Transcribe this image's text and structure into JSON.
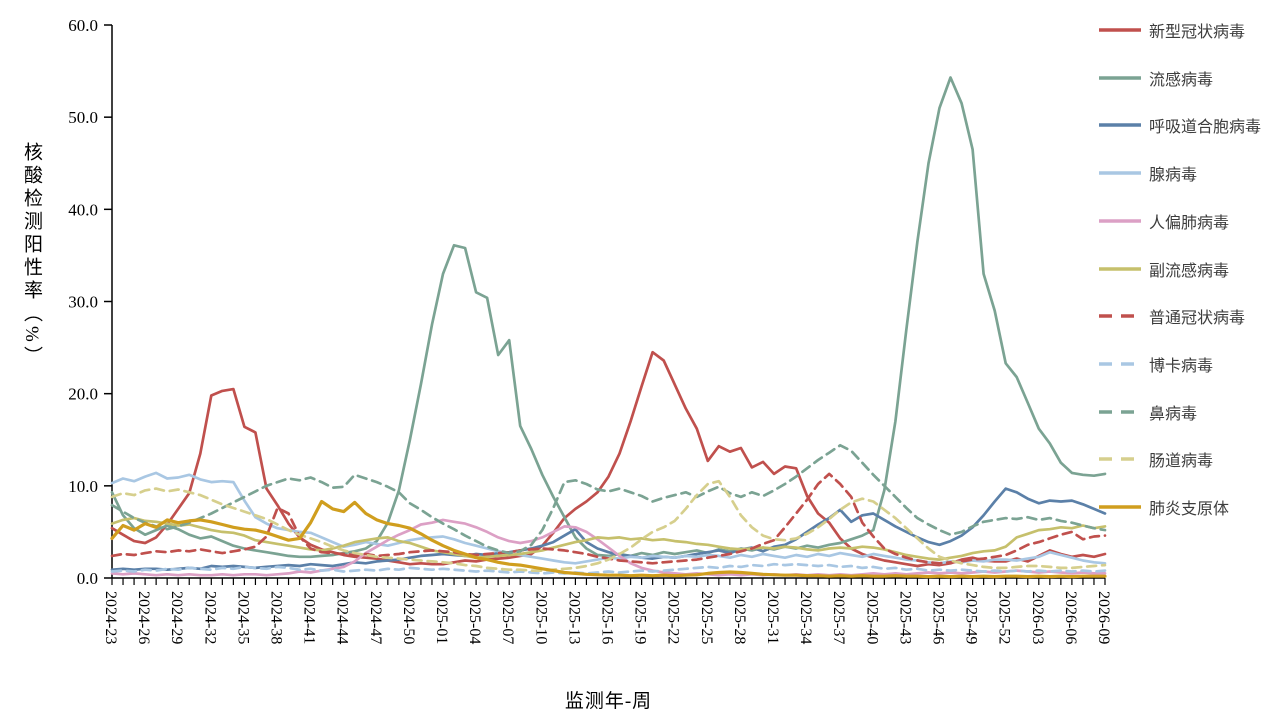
{
  "chart_data": {
    "type": "line",
    "title": "",
    "xlabel": "监测年-周",
    "ylabel": "核酸检测阳性率（%）",
    "ylim": [
      0,
      60
    ],
    "y_tick_step": 10,
    "y_tick_labels": [
      "0.0",
      "10.0",
      "20.0",
      "30.0",
      "40.0",
      "50.0",
      "60.0"
    ],
    "grid": false,
    "legend_position": "right",
    "n_points": 91,
    "x_tick_every": 3,
    "x_tick_labels": [
      "2024-23",
      "2024-26",
      "2024-29",
      "2024-32",
      "2024-35",
      "2024-38",
      "2024-41",
      "2024-44",
      "2024-47",
      "2024-50",
      "2025-01",
      "2025-04",
      "2025-07",
      "2025-10",
      "2025-13",
      "2025-16",
      "2025-19",
      "2025-22",
      "2025-25",
      "2025-28",
      "2025-31",
      "2025-34",
      "2025-37",
      "2025-40",
      "2025-43",
      "2025-46",
      "2025-49",
      "2025-52",
      "2026-03",
      "2026-06",
      "2026-09"
    ],
    "series": [
      {
        "key": "covid",
        "name": "新型冠状病毒",
        "color": "#C0504D",
        "dashed": false,
        "width": 2.7,
        "values": [
          5.4,
          4.7,
          4.0,
          3.8,
          4.4,
          5.8,
          7.5,
          9.2,
          13.5,
          19.8,
          20.3,
          20.5,
          16.4,
          15.8,
          9.7,
          7.9,
          5.9,
          4.4,
          3.6,
          3.1,
          2.8,
          2.5,
          2.3,
          2.2,
          2.1,
          1.9,
          1.7,
          1.5,
          1.6,
          1.5,
          1.5,
          1.7,
          1.9,
          1.8,
          2.0,
          2.1,
          2.2,
          2.4,
          2.6,
          3.5,
          4.9,
          6.5,
          7.5,
          8.3,
          9.3,
          11.0,
          13.5,
          17.0,
          20.8,
          24.5,
          23.6,
          21.0,
          18.4,
          16.2,
          12.7,
          14.3,
          13.7,
          14.1,
          12.0,
          12.6,
          11.3,
          12.1,
          11.9,
          8.9,
          7.0,
          6.0,
          4.3,
          3.2,
          2.6,
          2.2,
          1.9,
          1.7,
          1.5,
          1.3,
          1.5,
          1.4,
          1.6,
          2.0,
          2.2,
          1.9,
          1.8,
          1.8,
          2.1,
          1.8,
          2.4,
          3.0,
          2.6,
          2.3,
          2.5,
          2.3,
          2.6
        ]
      },
      {
        "key": "flu",
        "name": "流感病毒",
        "color": "#7BA393",
        "dashed": false,
        "width": 2.7,
        "values": [
          9.3,
          6.8,
          5.4,
          4.7,
          5.2,
          5.7,
          5.3,
          4.7,
          4.3,
          4.5,
          4.0,
          3.5,
          3.2,
          3.0,
          2.8,
          2.6,
          2.4,
          2.3,
          2.3,
          2.4,
          2.5,
          2.7,
          2.9,
          3.2,
          4.0,
          6.0,
          9.5,
          15.0,
          21.0,
          27.5,
          33.0,
          36.1,
          35.8,
          31.0,
          30.4,
          24.2,
          25.8,
          16.5,
          14.0,
          11.2,
          8.8,
          6.6,
          4.4,
          3.2,
          2.5,
          2.4,
          2.6,
          2.4,
          2.7,
          2.5,
          2.8,
          2.6,
          2.8,
          3.0,
          2.7,
          3.1,
          2.9,
          3.2,
          3.0,
          3.3,
          3.1,
          3.4,
          3.2,
          3.5,
          3.3,
          3.6,
          3.8,
          4.2,
          4.6,
          5.2,
          9.5,
          17.0,
          27.0,
          36.5,
          45.0,
          51.0,
          54.3,
          51.5,
          46.5,
          33.0,
          29.0,
          23.3,
          21.8,
          19.0,
          16.2,
          14.6,
          12.5,
          11.4,
          11.2,
          11.1,
          11.3
        ]
      },
      {
        "key": "rsv",
        "name": "呼吸道合胞病毒",
        "color": "#5B80A8",
        "dashed": false,
        "width": 2.7,
        "values": [
          0.9,
          1.0,
          0.9,
          1.0,
          1.0,
          0.9,
          1.0,
          1.1,
          1.0,
          1.3,
          1.2,
          1.3,
          1.2,
          1.1,
          1.2,
          1.3,
          1.4,
          1.3,
          1.5,
          1.4,
          1.3,
          1.5,
          1.7,
          1.6,
          1.8,
          1.9,
          2.0,
          2.2,
          2.4,
          2.5,
          2.6,
          2.5,
          2.4,
          2.6,
          2.5,
          2.7,
          2.8,
          3.0,
          3.2,
          3.5,
          3.9,
          4.6,
          5.3,
          3.9,
          3.2,
          2.8,
          2.5,
          2.4,
          2.2,
          2.1,
          2.3,
          2.2,
          2.4,
          2.6,
          2.8,
          3.0,
          2.7,
          3.1,
          3.3,
          2.9,
          3.4,
          3.6,
          4.2,
          5.0,
          5.8,
          6.5,
          7.4,
          6.1,
          6.8,
          7.0,
          6.3,
          5.6,
          5.0,
          4.4,
          3.9,
          3.6,
          4.0,
          4.6,
          5.5,
          6.8,
          8.3,
          9.7,
          9.3,
          8.6,
          8.1,
          8.4,
          8.3,
          8.4,
          8.0,
          7.5,
          7.0
        ]
      },
      {
        "key": "adv",
        "name": "腺病毒",
        "color": "#A9C7E3",
        "dashed": false,
        "width": 2.7,
        "values": [
          10.3,
          10.8,
          10.5,
          11.0,
          11.4,
          10.8,
          10.9,
          11.2,
          10.7,
          10.4,
          10.5,
          10.4,
          8.4,
          6.6,
          5.9,
          5.4,
          5.2,
          5.0,
          4.9,
          4.4,
          3.9,
          3.4,
          3.6,
          3.9,
          3.7,
          3.5,
          3.8,
          4.1,
          4.3,
          4.4,
          4.5,
          4.2,
          3.8,
          3.5,
          3.2,
          2.9,
          2.7,
          2.5,
          2.3,
          2.1,
          1.9,
          1.7,
          1.6,
          1.8,
          2.0,
          2.2,
          2.1,
          2.3,
          2.2,
          2.4,
          2.3,
          2.2,
          2.4,
          2.3,
          2.5,
          2.4,
          2.2,
          2.5,
          2.3,
          2.6,
          2.4,
          2.2,
          2.5,
          2.3,
          2.6,
          2.4,
          2.7,
          2.5,
          2.3,
          2.6,
          2.4,
          2.2,
          2.0,
          1.9,
          1.7,
          1.6,
          1.8,
          1.7,
          1.9,
          1.8,
          2.0,
          2.0,
          1.9,
          2.1,
          2.3,
          2.8,
          2.5,
          2.2,
          1.9,
          1.7,
          1.6
        ]
      },
      {
        "key": "hmpv",
        "name": "人偏肺病毒",
        "color": "#DCA0C5",
        "dashed": false,
        "width": 2.7,
        "values": [
          0.5,
          0.4,
          0.5,
          0.4,
          0.3,
          0.4,
          0.3,
          0.4,
          0.3,
          0.3,
          0.4,
          0.3,
          0.4,
          0.4,
          0.3,
          0.4,
          0.5,
          0.7,
          0.6,
          0.8,
          1.0,
          1.2,
          1.8,
          2.7,
          3.4,
          4.1,
          4.7,
          5.2,
          5.8,
          6.0,
          6.3,
          6.1,
          5.9,
          5.5,
          5.0,
          4.4,
          4.0,
          3.8,
          4.0,
          4.4,
          5.0,
          5.6,
          5.5,
          5.0,
          4.2,
          3.3,
          2.4,
          1.6,
          1.1,
          0.8,
          0.6,
          0.5,
          0.4,
          0.5,
          0.4,
          0.3,
          0.4,
          0.3,
          0.4,
          0.3,
          0.4,
          0.3,
          0.4,
          0.3,
          0.4,
          0.3,
          0.4,
          0.3,
          0.4,
          0.5,
          0.4,
          0.5,
          0.4,
          0.5,
          0.6,
          0.5,
          0.6,
          0.5,
          0.6,
          0.7,
          0.6,
          0.7,
          0.8,
          0.7,
          0.6,
          0.7,
          0.6,
          0.5,
          0.6,
          0.5,
          0.5
        ]
      },
      {
        "key": "piv",
        "name": "副流感病毒",
        "color": "#C6C06C",
        "dashed": false,
        "width": 2.7,
        "values": [
          5.9,
          6.3,
          6.5,
          6.2,
          6.1,
          5.9,
          5.7,
          5.8,
          5.5,
          5.2,
          5.0,
          4.9,
          4.6,
          4.1,
          3.9,
          3.7,
          3.5,
          3.3,
          3.1,
          3.0,
          3.2,
          3.5,
          3.9,
          4.1,
          4.3,
          4.4,
          4.0,
          3.8,
          3.4,
          3.0,
          2.8,
          2.6,
          2.4,
          2.2,
          2.3,
          2.4,
          2.5,
          2.6,
          2.8,
          3.0,
          3.3,
          3.6,
          3.9,
          4.1,
          4.4,
          4.3,
          4.4,
          4.2,
          4.3,
          4.1,
          4.2,
          4.0,
          3.9,
          3.7,
          3.6,
          3.4,
          3.2,
          3.1,
          3.2,
          3.3,
          3.2,
          3.4,
          3.3,
          3.1,
          3.0,
          3.2,
          3.3,
          3.2,
          3.4,
          3.3,
          3.1,
          2.8,
          2.5,
          2.3,
          2.1,
          2.0,
          2.2,
          2.4,
          2.7,
          2.9,
          3.0,
          3.4,
          4.4,
          4.8,
          5.2,
          5.3,
          5.5,
          5.4,
          5.7,
          5.4,
          5.6
        ]
      },
      {
        "key": "hcov",
        "name": "普通冠状病毒",
        "color": "#C0504D",
        "dashed": true,
        "width": 2.7,
        "values": [
          2.4,
          2.6,
          2.5,
          2.7,
          2.9,
          2.8,
          3.0,
          2.9,
          3.1,
          2.9,
          2.7,
          2.9,
          3.1,
          3.4,
          4.5,
          7.6,
          7.0,
          4.5,
          3.2,
          2.8,
          2.7,
          2.6,
          2.5,
          2.6,
          2.4,
          2.5,
          2.6,
          2.8,
          2.9,
          3.0,
          2.9,
          2.8,
          2.6,
          2.5,
          2.6,
          2.7,
          2.8,
          3.0,
          3.1,
          3.2,
          3.1,
          3.0,
          2.8,
          2.6,
          2.3,
          2.1,
          1.9,
          1.8,
          1.7,
          1.6,
          1.7,
          1.8,
          1.9,
          2.0,
          2.2,
          2.4,
          2.6,
          2.9,
          3.2,
          3.7,
          4.1,
          5.5,
          7.0,
          8.5,
          10.2,
          11.3,
          10.2,
          8.8,
          6.0,
          4.5,
          3.2,
          2.6,
          2.2,
          1.9,
          1.7,
          1.6,
          1.7,
          1.8,
          2.0,
          2.1,
          2.3,
          2.5,
          3.0,
          3.6,
          3.9,
          4.3,
          4.7,
          5.0,
          4.2,
          4.5,
          4.6
        ]
      },
      {
        "key": "hbov",
        "name": "博卡病毒",
        "color": "#A9C7E3",
        "dashed": true,
        "width": 2.7,
        "values": [
          0.7,
          0.8,
          0.7,
          0.9,
          0.8,
          1.0,
          0.9,
          1.1,
          1.0,
          0.9,
          1.1,
          1.0,
          1.2,
          1.1,
          1.0,
          1.2,
          1.1,
          0.9,
          1.0,
          0.8,
          0.9,
          0.7,
          0.8,
          0.9,
          0.8,
          1.0,
          0.9,
          1.1,
          1.0,
          0.9,
          1.0,
          0.9,
          0.8,
          0.7,
          0.8,
          0.7,
          0.6,
          0.7,
          0.6,
          0.5,
          0.6,
          0.5,
          0.6,
          0.5,
          0.6,
          0.7,
          0.6,
          0.7,
          0.8,
          0.7,
          0.8,
          0.9,
          1.0,
          1.1,
          1.2,
          1.1,
          1.3,
          1.2,
          1.4,
          1.3,
          1.5,
          1.4,
          1.5,
          1.4,
          1.3,
          1.4,
          1.2,
          1.3,
          1.1,
          1.2,
          1.0,
          1.1,
          0.9,
          1.0,
          0.8,
          0.9,
          0.8,
          0.9,
          0.8,
          0.7,
          0.8,
          0.7,
          0.8,
          0.7,
          0.8,
          0.7,
          0.8,
          0.7,
          0.8,
          0.7,
          0.8
        ]
      },
      {
        "key": "hrv",
        "name": "鼻病毒",
        "color": "#7BA393",
        "dashed": true,
        "width": 2.7,
        "values": [
          7.9,
          7.2,
          6.5,
          6.0,
          5.6,
          5.3,
          5.6,
          6.0,
          6.5,
          7.0,
          7.6,
          8.2,
          8.8,
          9.4,
          10.0,
          10.4,
          10.8,
          10.6,
          10.9,
          10.4,
          9.8,
          9.9,
          11.2,
          10.8,
          10.4,
          9.9,
          9.3,
          8.1,
          7.4,
          6.6,
          5.9,
          5.3,
          4.6,
          4.0,
          3.4,
          3.0,
          2.7,
          2.9,
          3.6,
          5.2,
          7.6,
          10.4,
          10.6,
          10.2,
          9.6,
          9.4,
          9.7,
          9.3,
          8.9,
          8.3,
          8.7,
          9.0,
          9.3,
          8.8,
          9.4,
          9.9,
          9.2,
          8.8,
          9.3,
          8.9,
          9.5,
          10.2,
          11.0,
          11.9,
          12.8,
          13.6,
          14.4,
          13.8,
          12.5,
          11.2,
          10.0,
          8.8,
          7.6,
          6.5,
          5.8,
          5.2,
          4.7,
          5.0,
          5.6,
          6.1,
          6.3,
          6.5,
          6.4,
          6.6,
          6.3,
          6.5,
          6.2,
          6.0,
          5.7,
          5.4,
          5.2
        ]
      },
      {
        "key": "ev",
        "name": "肠道病毒",
        "color": "#D6CF8D",
        "dashed": true,
        "width": 2.7,
        "values": [
          8.8,
          9.2,
          9.0,
          9.5,
          9.7,
          9.4,
          9.6,
          9.3,
          9.0,
          8.5,
          8.0,
          7.6,
          7.2,
          6.8,
          6.4,
          5.8,
          5.2,
          4.7,
          4.3,
          3.9,
          3.4,
          3.0,
          2.7,
          2.5,
          2.3,
          2.2,
          2.1,
          2.0,
          1.9,
          1.8,
          1.7,
          1.6,
          1.4,
          1.3,
          1.1,
          1.0,
          0.9,
          0.9,
          0.8,
          0.8,
          0.9,
          1.0,
          1.1,
          1.3,
          1.6,
          2.0,
          2.6,
          3.3,
          4.2,
          5.0,
          5.5,
          6.2,
          7.5,
          9.0,
          10.2,
          10.5,
          8.8,
          6.8,
          5.5,
          4.6,
          4.2,
          4.1,
          4.3,
          4.8,
          5.5,
          6.4,
          7.4,
          8.2,
          8.6,
          8.3,
          7.4,
          6.5,
          5.4,
          4.3,
          3.2,
          2.3,
          1.9,
          1.6,
          1.4,
          1.2,
          1.1,
          1.1,
          1.2,
          1.3,
          1.3,
          1.2,
          1.1,
          1.1,
          1.2,
          1.3,
          1.4
        ]
      },
      {
        "key": "mp",
        "name": "肺炎支原体",
        "color": "#D09E1E",
        "dashed": false,
        "width": 3.2,
        "values": [
          4.3,
          5.7,
          5.2,
          5.9,
          5.5,
          6.3,
          6.0,
          6.2,
          6.3,
          6.1,
          5.8,
          5.5,
          5.3,
          5.2,
          4.9,
          4.5,
          4.1,
          4.3,
          6.0,
          8.3,
          7.5,
          7.2,
          8.2,
          7.0,
          6.3,
          5.9,
          5.7,
          5.4,
          4.8,
          4.1,
          3.5,
          3.0,
          2.6,
          2.2,
          2.0,
          1.7,
          1.5,
          1.4,
          1.2,
          1.0,
          0.8,
          0.6,
          0.5,
          0.4,
          0.35,
          0.3,
          0.3,
          0.25,
          0.3,
          0.25,
          0.3,
          0.25,
          0.3,
          0.35,
          0.5,
          0.6,
          0.65,
          0.6,
          0.5,
          0.4,
          0.35,
          0.3,
          0.3,
          0.25,
          0.25,
          0.2,
          0.25,
          0.2,
          0.25,
          0.2,
          0.2,
          0.25,
          0.2,
          0.2,
          0.15,
          0.2,
          0.15,
          0.2,
          0.15,
          0.2,
          0.15,
          0.2,
          0.2,
          0.15,
          0.2,
          0.15,
          0.2,
          0.15,
          0.2,
          0.2,
          0.2
        ]
      }
    ]
  }
}
